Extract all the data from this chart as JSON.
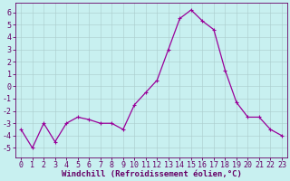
{
  "x": [
    0,
    1,
    2,
    3,
    4,
    5,
    6,
    7,
    8,
    9,
    10,
    11,
    12,
    13,
    14,
    15,
    16,
    17,
    18,
    19,
    20,
    21,
    22,
    23
  ],
  "y": [
    -3.5,
    -5.0,
    -3.0,
    -4.5,
    -3.0,
    -2.5,
    -2.7,
    -3.0,
    -3.0,
    -3.5,
    -1.5,
    -0.5,
    0.5,
    3.0,
    5.5,
    6.2,
    5.3,
    4.6,
    1.3,
    -1.3,
    -2.5,
    -2.5,
    -3.5,
    -4.0
  ],
  "line_color": "#990099",
  "marker": "+",
  "marker_size": 3,
  "bg_color": "#c8f0f0",
  "grid_color": "#aacccc",
  "xlabel": "Windchill (Refroidissement éolien,°C)",
  "xlim": [
    -0.5,
    23.5
  ],
  "ylim": [
    -5.8,
    6.8
  ],
  "yticks": [
    -5,
    -4,
    -3,
    -2,
    -1,
    0,
    1,
    2,
    3,
    4,
    5,
    6
  ],
  "xticks": [
    0,
    1,
    2,
    3,
    4,
    5,
    6,
    7,
    8,
    9,
    10,
    11,
    12,
    13,
    14,
    15,
    16,
    17,
    18,
    19,
    20,
    21,
    22,
    23
  ],
  "axis_color": "#660066",
  "xlabel_fontsize": 6.5,
  "tick_fontsize": 6.0,
  "line_width": 0.9
}
